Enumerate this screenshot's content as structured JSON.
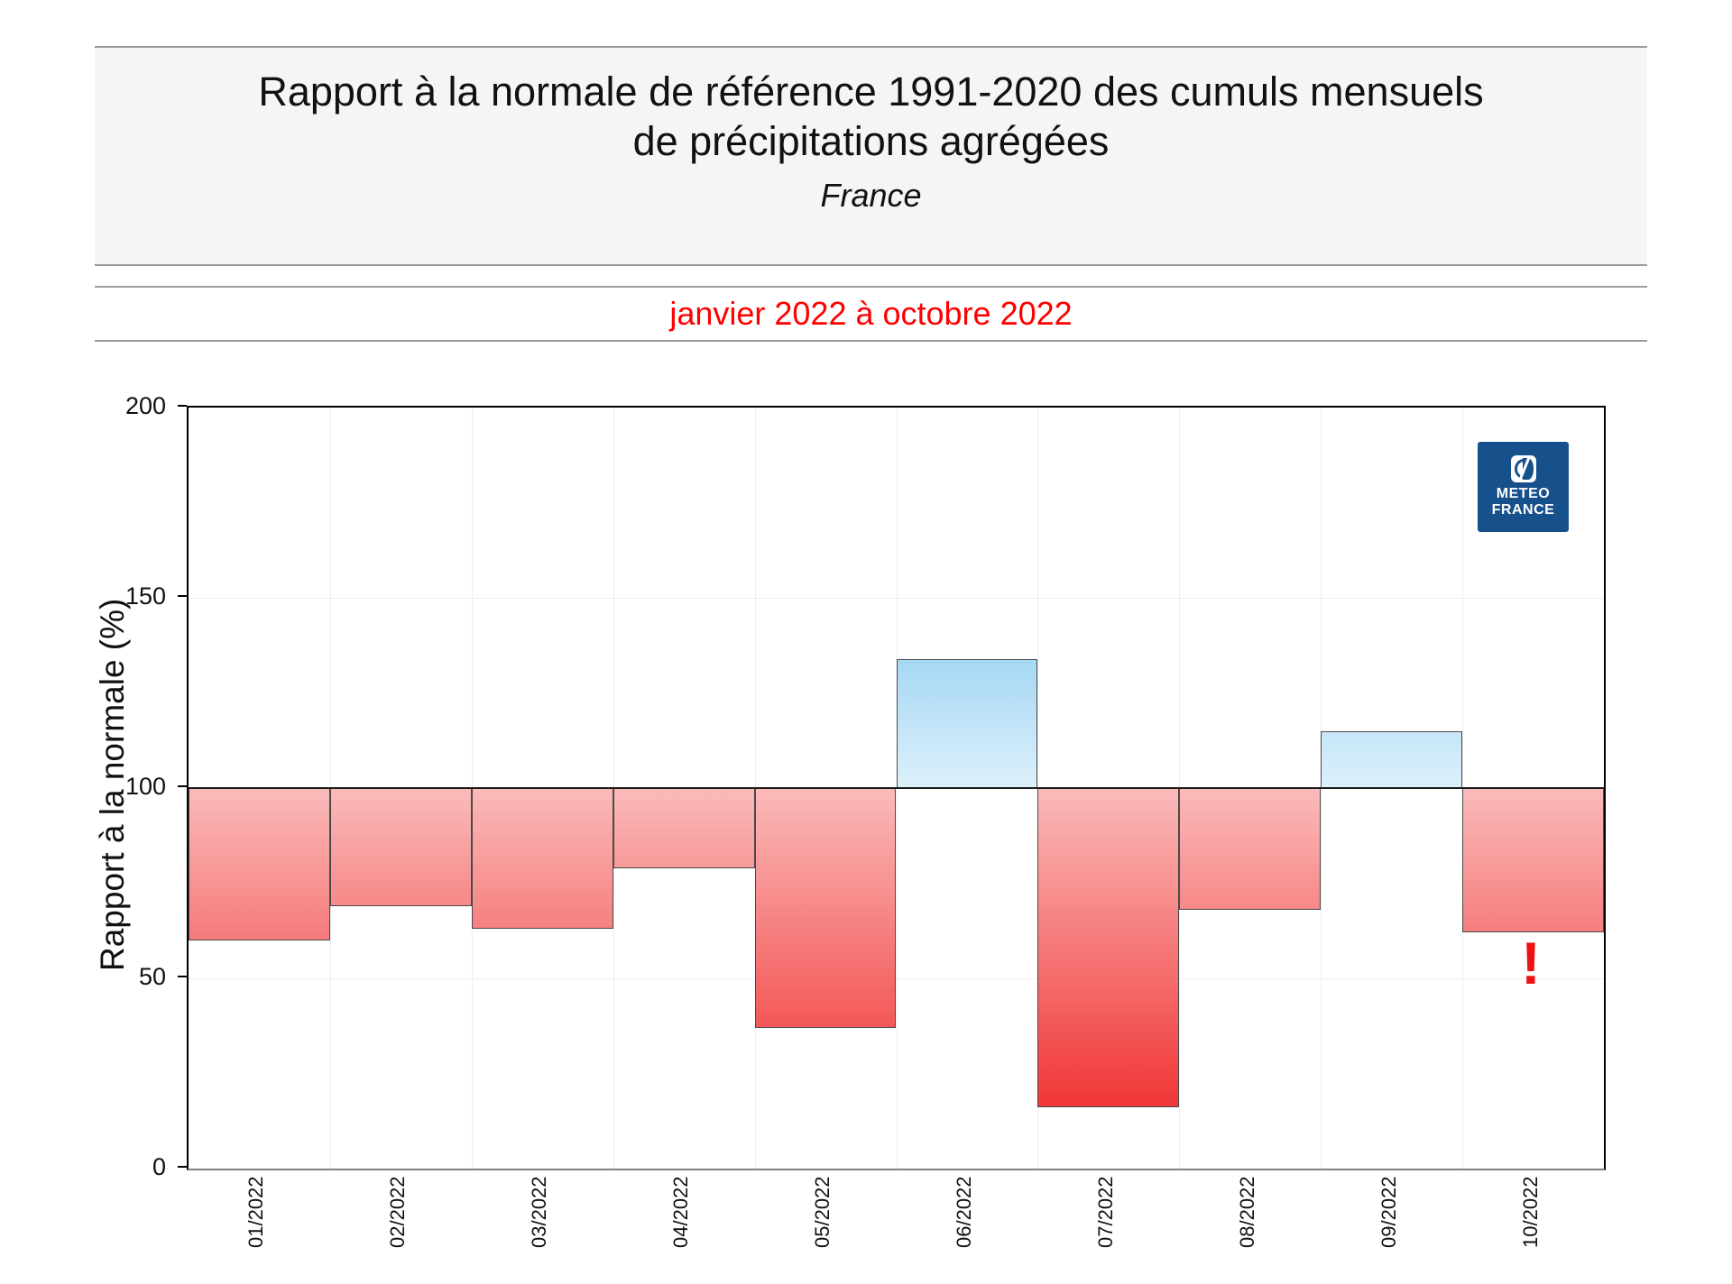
{
  "header": {
    "title_line1": "Rapport à la normale de référence 1991-2020 des cumuls mensuels",
    "title_line2": "de précipitations agrégées",
    "region": "France"
  },
  "subtitle": {
    "text": "janvier 2022 à octobre 2022",
    "color": "#ff0000"
  },
  "logo": {
    "line1": "METEO",
    "line2": "FRANCE",
    "bg_color": "#17518b"
  },
  "annotation": {
    "text": "!",
    "color": "#ee1111"
  },
  "chart_data": {
    "type": "bar",
    "title": "Rapport à la normale de référence 1991-2020 des cumuls mensuels de précipitations agrégées - France - janvier 2022 à octobre 2022",
    "categories": [
      "01/2022",
      "02/2022",
      "03/2022",
      "04/2022",
      "05/2022",
      "06/2022",
      "07/2022",
      "08/2022",
      "09/2022",
      "10/2022"
    ],
    "values": [
      60,
      69,
      63,
      79,
      37,
      134,
      16,
      68,
      115,
      62
    ],
    "baseline": 100,
    "xlabel": "",
    "ylabel": "Rapport à la normale (%)",
    "ylim": [
      0,
      200
    ],
    "yticks": [
      0,
      50,
      100,
      150,
      200
    ],
    "grid": "light vertical per month, light horizontal at 50/150, black line at 100",
    "legend": "none",
    "colors": {
      "red_gradient_top": "#fbbaba",
      "red_gradient_deep": "#ee1d1d",
      "blue_gradient_light": "#ddf0fb",
      "blue_gradient_deep": "#8ccdf1",
      "blue_span_units": 50,
      "bar_border": "#4a4a4a"
    }
  }
}
